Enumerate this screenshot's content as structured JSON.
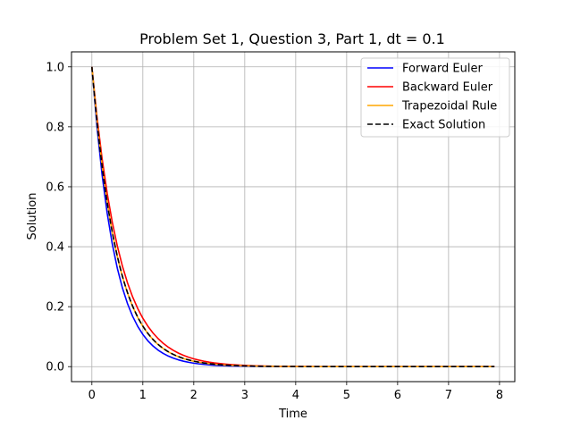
{
  "chart_data": {
    "type": "line",
    "title": "Problem Set 1, Question 3, Part 1, dt = 0.1",
    "xlabel": "Time",
    "ylabel": "Solution",
    "xlim": [
      -0.4,
      8.3
    ],
    "ylim": [
      -0.05,
      1.05
    ],
    "xticks": [
      0,
      1,
      2,
      3,
      4,
      5,
      6,
      7,
      8
    ],
    "yticks": [
      0.0,
      0.2,
      0.4,
      0.6,
      0.8,
      1.0
    ],
    "xtick_labels": [
      "0",
      "1",
      "2",
      "3",
      "4",
      "5",
      "6",
      "7",
      "8"
    ],
    "ytick_labels": [
      "0.0",
      "0.2",
      "0.4",
      "0.6",
      "0.8",
      "1.0"
    ],
    "grid": true,
    "legend_position": "top-right",
    "t_start": 0,
    "t_end": 7.9,
    "dt": 0.1,
    "series": [
      {
        "name": "Forward Euler",
        "color": "#0000ff",
        "style": "solid",
        "decay_factor_per_step": 0.8
      },
      {
        "name": "Backward Euler",
        "color": "#ff0000",
        "style": "solid",
        "decay_factor_per_step": 0.8333
      },
      {
        "name": "Trapezoidal Rule",
        "color": "#ffa500",
        "style": "solid",
        "decay_factor_per_step": 0.8182
      },
      {
        "name": "Exact Solution",
        "color": "#000000",
        "style": "dashed",
        "decay_rate": 2
      }
    ]
  }
}
